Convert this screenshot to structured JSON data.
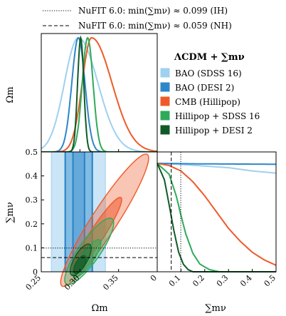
{
  "chart_data": {
    "type": "corner-plot",
    "reference_lines": [
      {
        "label": "NuFIT 6.0: min(∑mν) ≈ 0.099 (IH)",
        "style": "dotted",
        "value": 0.099
      },
      {
        "label": "NuFIT 6.0: min(∑mν) ≈ 0.059 (NH)",
        "style": "dashed",
        "value": 0.059
      }
    ],
    "legend_title": "ΛCDM + ∑mν",
    "legend_position": "right of top-left panel",
    "series": [
      {
        "name": "BAO (SDSS 16)",
        "color": "#9fd0ef",
        "om_mean": 0.298,
        "om_sigma": 0.018,
        "om_shape": "tailed",
        "mnu_curve": [
          [
            0,
            1.0
          ],
          [
            0.05,
            0.995
          ],
          [
            0.1,
            0.99
          ],
          [
            0.2,
            0.975
          ],
          [
            0.3,
            0.96
          ],
          [
            0.4,
            0.93
          ],
          [
            0.5,
            0.91
          ]
        ]
      },
      {
        "name": "BAO (DESI 2)",
        "color": "#2e86c9",
        "om_mean": 0.298,
        "om_sigma": 0.0085,
        "mnu_curve": [
          [
            0,
            1.0
          ],
          [
            0.05,
            0.999
          ],
          [
            0.1,
            0.997
          ],
          [
            0.2,
            0.995
          ],
          [
            0.3,
            0.994
          ],
          [
            0.4,
            0.993
          ],
          [
            0.5,
            0.992
          ]
        ]
      },
      {
        "name": "CMB (Hillipop)",
        "color": "#ef5a2a",
        "om_mean": 0.315,
        "om_sigma": 0.012,
        "om_shape": "right-tail",
        "mnu_curve": [
          [
            0,
            1.0
          ],
          [
            0.05,
            0.98
          ],
          [
            0.1,
            0.93
          ],
          [
            0.15,
            0.83
          ],
          [
            0.2,
            0.7
          ],
          [
            0.25,
            0.55
          ],
          [
            0.3,
            0.4
          ],
          [
            0.35,
            0.28
          ],
          [
            0.4,
            0.18
          ],
          [
            0.45,
            0.11
          ],
          [
            0.5,
            0.06
          ]
        ]
      },
      {
        "name": "Hillipop + SDSS 16",
        "color": "#2eaa5a",
        "om_mean": 0.31,
        "om_sigma": 0.007,
        "mnu_curve": [
          [
            0,
            1.0
          ],
          [
            0.05,
            0.9
          ],
          [
            0.08,
            0.7
          ],
          [
            0.1,
            0.52
          ],
          [
            0.12,
            0.35
          ],
          [
            0.15,
            0.17
          ],
          [
            0.18,
            0.07
          ],
          [
            0.22,
            0.02
          ],
          [
            0.26,
            0.0
          ]
        ]
      },
      {
        "name": "Hillipop + DESI 2",
        "color": "#0f5a26",
        "om_mean": 0.301,
        "om_sigma": 0.004,
        "mnu_curve": [
          [
            0,
            1.0
          ],
          [
            0.03,
            0.85
          ],
          [
            0.05,
            0.62
          ],
          [
            0.07,
            0.38
          ],
          [
            0.09,
            0.18
          ],
          [
            0.11,
            0.07
          ],
          [
            0.13,
            0.02
          ],
          [
            0.15,
            0.0
          ]
        ]
      }
    ],
    "axes": {
      "om": {
        "label": "Ωm",
        "range": [
          0.25,
          0.4
        ],
        "ticks": [
          "0.25",
          "0.30",
          "0.35"
        ],
        "tick_values": [
          0.25,
          0.3,
          0.35
        ]
      },
      "mnu": {
        "label": "∑mν",
        "range": [
          0,
          0.5
        ],
        "ticks": [
          "0",
          "0.1",
          "0.2",
          "0.3",
          "0.4",
          "0.5"
        ],
        "tick_values": [
          0,
          0.1,
          0.2,
          0.3,
          0.4,
          0.5
        ]
      }
    }
  }
}
